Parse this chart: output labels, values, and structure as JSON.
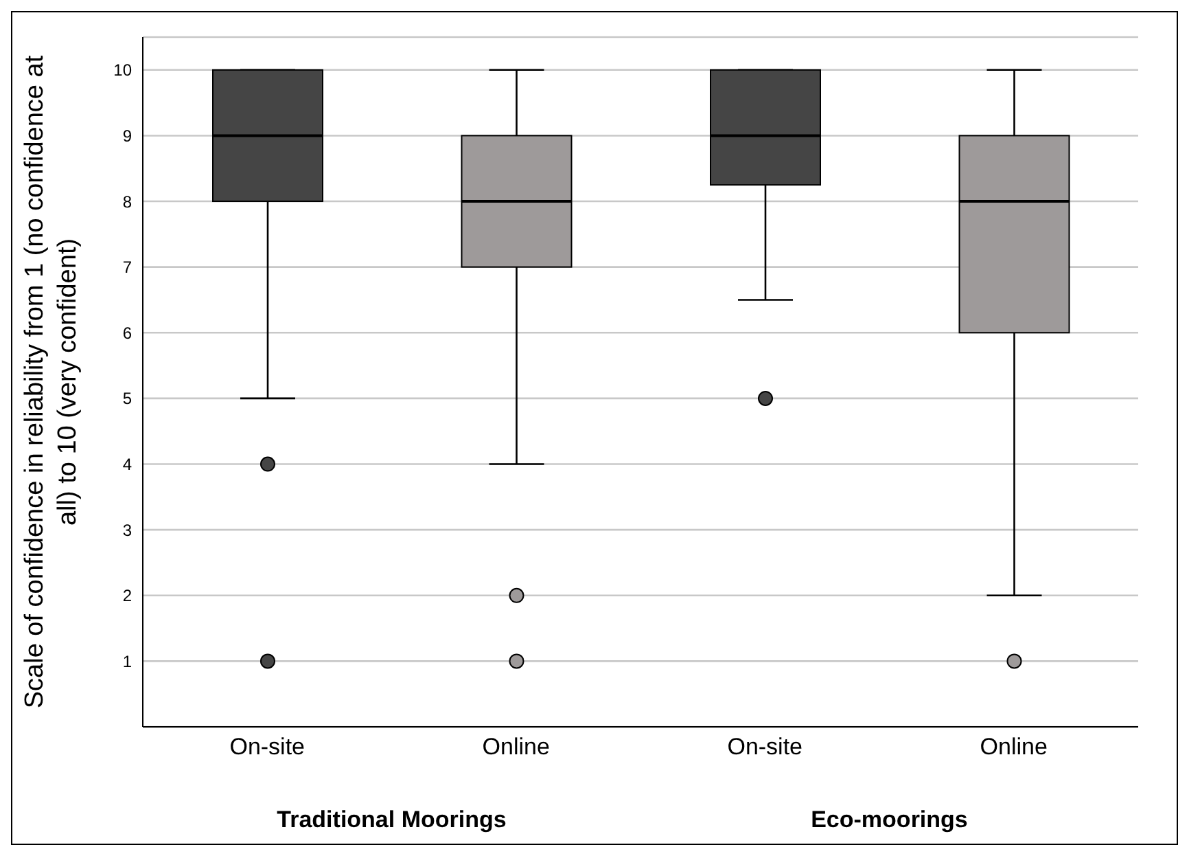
{
  "chart_data": {
    "type": "box",
    "ylabel": "Scale of confidence in reliability from 1 (no confidence at all) to 10 (very confident)",
    "categories": [
      "On-site",
      "Online",
      "On-site",
      "Online"
    ],
    "annotations": [
      "Traditional Moorings",
      "Eco-moorings"
    ],
    "boxes": [
      {
        "low": 5,
        "q1": 8,
        "median": 9,
        "q3": 10,
        "high": 10,
        "outliers": [
          4,
          1
        ]
      },
      {
        "low": 4,
        "q1": 7,
        "median": 8,
        "q3": 9,
        "high": 10,
        "outliers": [
          2,
          1
        ]
      },
      {
        "low": 6.5,
        "q1": 8.25,
        "median": 9,
        "q3": 10,
        "high": 10,
        "outliers": [
          5
        ]
      },
      {
        "low": 2,
        "q1": 6,
        "median": 8,
        "q3": 9,
        "high": 10,
        "outliers": [
          1
        ]
      }
    ],
    "colors": [
      "#454545",
      "#9e9a9a",
      "#454545",
      "#9e9a9a"
    ],
    "ylim": [
      0,
      10.5
    ],
    "yticks": [
      1,
      2,
      3,
      4,
      5,
      6,
      7,
      8,
      9,
      10
    ],
    "grid": "y"
  }
}
